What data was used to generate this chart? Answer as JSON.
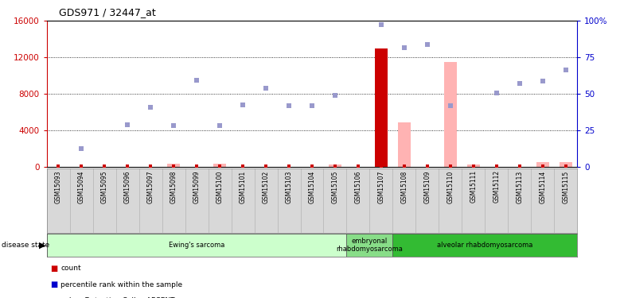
{
  "title": "GDS971 / 32447_at",
  "samples": [
    "GSM15093",
    "GSM15094",
    "GSM15095",
    "GSM15096",
    "GSM15097",
    "GSM15098",
    "GSM15099",
    "GSM15100",
    "GSM15101",
    "GSM15102",
    "GSM15103",
    "GSM15104",
    "GSM15105",
    "GSM15106",
    "GSM15107",
    "GSM15108",
    "GSM15109",
    "GSM15110",
    "GSM15111",
    "GSM15112",
    "GSM15113",
    "GSM15114",
    "GSM15115"
  ],
  "ylim_left": [
    0,
    16000
  ],
  "ylim_right": [
    0,
    100
  ],
  "yticks_left": [
    0,
    4000,
    8000,
    12000,
    16000
  ],
  "ytick_labels_right": [
    "0",
    "25",
    "50",
    "75",
    "100%"
  ],
  "red_bars": {
    "GSM15107": 13000
  },
  "pink_bars": {
    "GSM15098": 380,
    "GSM15100": 320,
    "GSM15105": 300,
    "GSM15108": 4900,
    "GSM15110": 11500,
    "GSM15111": 220,
    "GSM15114": 520,
    "GSM15115": 480
  },
  "blue_squares": {
    "GSM15094": 2000,
    "GSM15096": 4600,
    "GSM15097": 6500,
    "GSM15098": 4500,
    "GSM15099": 9500,
    "GSM15100": 4500,
    "GSM15101": 6800,
    "GSM15102": 8600,
    "GSM15103": 6700,
    "GSM15104": 6700,
    "GSM15105": 7800,
    "GSM15107": 15600,
    "GSM15108": 13100,
    "GSM15109": 13400,
    "GSM15110": 6700,
    "GSM15112": 8100,
    "GSM15113": 9100,
    "GSM15114": 9400,
    "GSM15115": 10600
  },
  "disease_groups": [
    {
      "label": "Ewing's sarcoma",
      "start": 0,
      "end": 13,
      "color": "#ccffcc"
    },
    {
      "label": "embryonal\nrhabdomyosarcoma",
      "start": 13,
      "end": 15,
      "color": "#88dd88"
    },
    {
      "label": "alveolar rhabdomyosarcoma",
      "start": 15,
      "end": 23,
      "color": "#33bb33"
    }
  ],
  "bg_color": "#ffffff",
  "axis_left_color": "#cc0000",
  "axis_right_color": "#0000cc"
}
